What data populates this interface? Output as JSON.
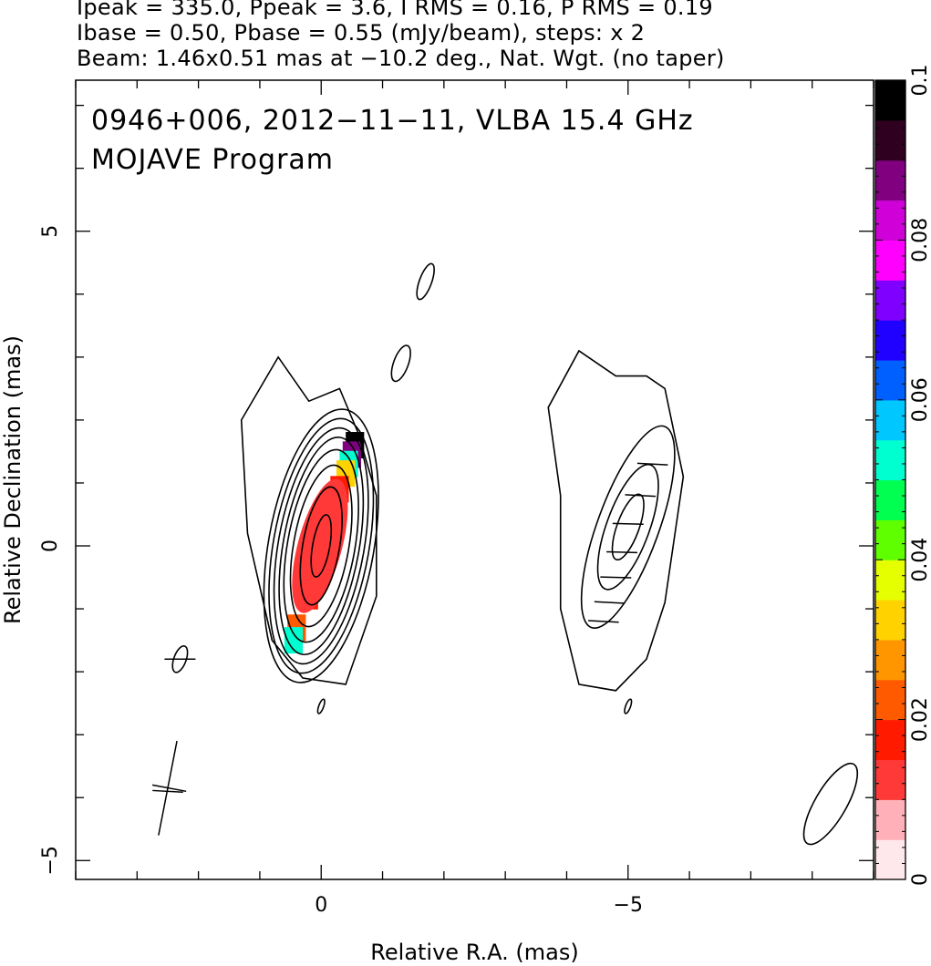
{
  "header": {
    "line1": "Ipeak = 335.0, Ppeak = 3.6, I RMS = 0.16, P RMS = 0.19",
    "line2": "Ibase = 0.50, Pbase = 0.55 (mJy/beam), steps: x 2",
    "line3": "Beam: 1.46x0.51 mas at −10.2 deg., Nat. Wgt. (no taper)"
  },
  "chart_data": {
    "type": "heatmap",
    "title_lines": [
      "0946+006, 2012−11−11, VLBA 15.4 GHz",
      "MOJAVE Program"
    ],
    "xlabel": "Relative R.A. (mas)",
    "ylabel": "Relative Declination (mas)",
    "xlim": [
      4,
      -9
    ],
    "ylim": [
      -5.3,
      7.4
    ],
    "x_ticks": [
      {
        "value": 0,
        "label": "0"
      },
      {
        "value": -5,
        "label": "−5"
      }
    ],
    "y_ticks": [
      {
        "value": 5,
        "label": "5"
      },
      {
        "value": 0,
        "label": "0"
      },
      {
        "value": -5,
        "label": "−5"
      }
    ],
    "colorbar": {
      "range": [
        0,
        0.1
      ],
      "ticks": [
        {
          "value": 0,
          "label": "0"
        },
        {
          "value": 0.02,
          "label": "0.02"
        },
        {
          "value": 0.04,
          "label": "0.04"
        },
        {
          "value": 0.06,
          "label": "0.06"
        },
        {
          "value": 0.08,
          "label": "0.08"
        },
        {
          "value": 0.1,
          "label": "0.1"
        }
      ],
      "colors": [
        "#ffe8ec",
        "#ffb0b8",
        "#ff3838",
        "#ff1a00",
        "#ff5a00",
        "#ff9600",
        "#ffd200",
        "#e6ff00",
        "#60ff00",
        "#00ff50",
        "#00ffd0",
        "#00c8ff",
        "#0060ff",
        "#2000ff",
        "#8000ff",
        "#ff00ff",
        "#d000d8",
        "#800080",
        "#300020",
        "#000000"
      ]
    },
    "intensity_contours": [
      {
        "name": "core",
        "center": [
          0.0,
          0.0
        ],
        "pa_deg": -10,
        "semi_axes": [
          [
            0.14,
            0.5
          ],
          [
            0.3,
            0.95
          ],
          [
            0.45,
            1.3
          ],
          [
            0.55,
            1.55
          ],
          [
            0.62,
            1.75
          ],
          [
            0.7,
            1.9
          ],
          [
            0.78,
            2.05
          ],
          [
            0.86,
            2.2
          ]
        ]
      },
      {
        "name": "jet",
        "center": [
          -5.0,
          0.3
        ],
        "pa_deg": -20,
        "semi_axes": [
          [
            0.18,
            0.55
          ],
          [
            0.35,
            1.05
          ],
          [
            0.5,
            1.7
          ]
        ]
      }
    ],
    "polarization_pixels": [
      {
        "x": -0.55,
        "y": 1.6,
        "value": 0.1
      },
      {
        "x": -0.5,
        "y": 1.45,
        "value": 0.085
      },
      {
        "x": -0.45,
        "y": 1.3,
        "value": 0.055
      },
      {
        "x": -0.4,
        "y": 1.15,
        "value": 0.03
      },
      {
        "x": -0.3,
        "y": 0.9,
        "value": 0.02
      },
      {
        "x": -0.15,
        "y": 0.6,
        "value": 0.013
      },
      {
        "x": 0.0,
        "y": 0.0,
        "value": 0.01
      },
      {
        "x": 0.2,
        "y": -0.8,
        "value": 0.015
      },
      {
        "x": 0.4,
        "y": -1.3,
        "value": 0.022
      },
      {
        "x": 0.45,
        "y": -1.5,
        "value": 0.05
      }
    ],
    "evpa_vectors": [
      {
        "x": -5.4,
        "y": 1.3,
        "angle_deg": 80
      },
      {
        "x": -5.2,
        "y": 0.8,
        "angle_deg": 80
      },
      {
        "x": -5.0,
        "y": 0.35,
        "angle_deg": 85
      },
      {
        "x": -4.9,
        "y": -0.1,
        "angle_deg": 85
      },
      {
        "x": -4.8,
        "y": -0.5,
        "angle_deg": 85
      },
      {
        "x": -4.7,
        "y": -0.9,
        "angle_deg": 80
      },
      {
        "x": -4.6,
        "y": -1.2,
        "angle_deg": 80
      },
      {
        "x": 2.3,
        "y": -1.8,
        "angle_deg": 90
      },
      {
        "x": 2.5,
        "y": -3.9,
        "angle_deg": 80
      }
    ],
    "beam": {
      "major_mas": 1.46,
      "minor_mas": 0.51,
      "pa_deg": -10.2,
      "center": [
        -8.3,
        -4.1
      ]
    }
  }
}
